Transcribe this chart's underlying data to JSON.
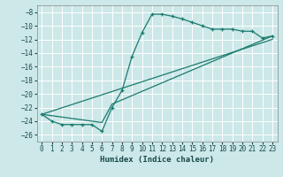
{
  "xlabel": "Humidex (Indice chaleur)",
  "bg_color": "#cce8e8",
  "grid_color": "#aacccc",
  "line_color": "#1a7a6e",
  "xlim": [
    -0.5,
    23.5
  ],
  "ylim": [
    -27,
    -7
  ],
  "yticks": [
    -8,
    -10,
    -12,
    -14,
    -16,
    -18,
    -20,
    -22,
    -24,
    -26
  ],
  "xticks": [
    0,
    1,
    2,
    3,
    4,
    5,
    6,
    7,
    8,
    9,
    10,
    11,
    12,
    13,
    14,
    15,
    16,
    17,
    18,
    19,
    20,
    21,
    22,
    23
  ],
  "series1_x": [
    0,
    1,
    2,
    3,
    4,
    5,
    6,
    7,
    8,
    9,
    10,
    11,
    12,
    13,
    14,
    15,
    16,
    17,
    18,
    19,
    20,
    21,
    22,
    23
  ],
  "series1_y": [
    -23,
    -24,
    -24.5,
    -24.5,
    -24.5,
    -24.5,
    -25.5,
    -22.0,
    -19.5,
    -14.5,
    -11.0,
    -8.3,
    -8.3,
    -8.6,
    -9.0,
    -9.5,
    -10.0,
    -10.5,
    -10.5,
    -10.5,
    -10.8,
    -10.8,
    -11.8,
    -11.5
  ],
  "series2_x": [
    0,
    6,
    7,
    23
  ],
  "series2_y": [
    -23,
    -24.2,
    -21.5,
    -11.5
  ],
  "series3_x": [
    0,
    23
  ],
  "series3_y": [
    -23,
    -12.0
  ]
}
